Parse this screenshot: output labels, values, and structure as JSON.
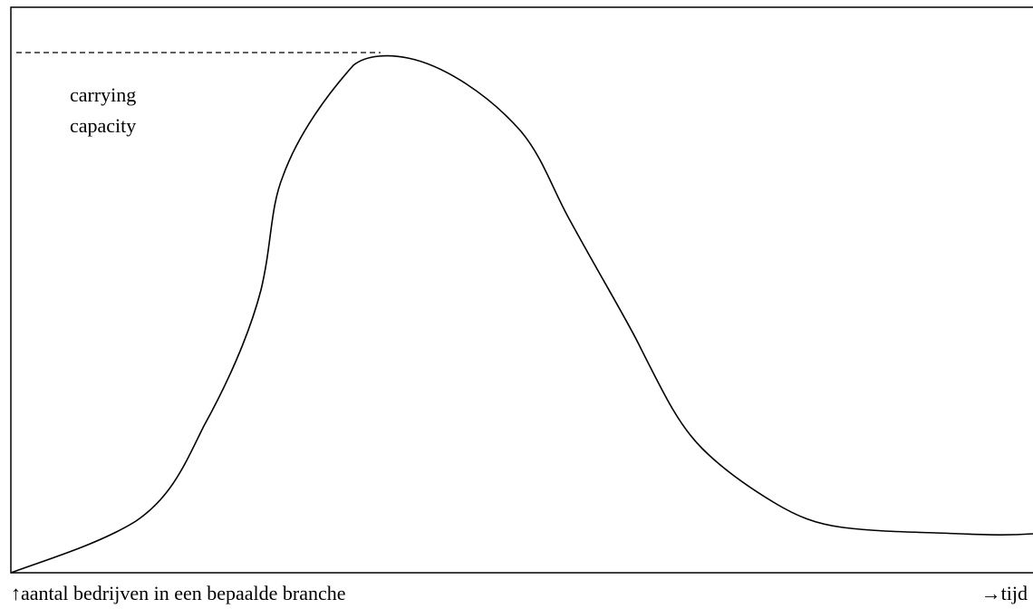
{
  "annotation": "carrying capacity",
  "y_axis_label": "↑aantal bedrijven in een bepaalde branche",
  "x_axis_label": "→tijd"
}
